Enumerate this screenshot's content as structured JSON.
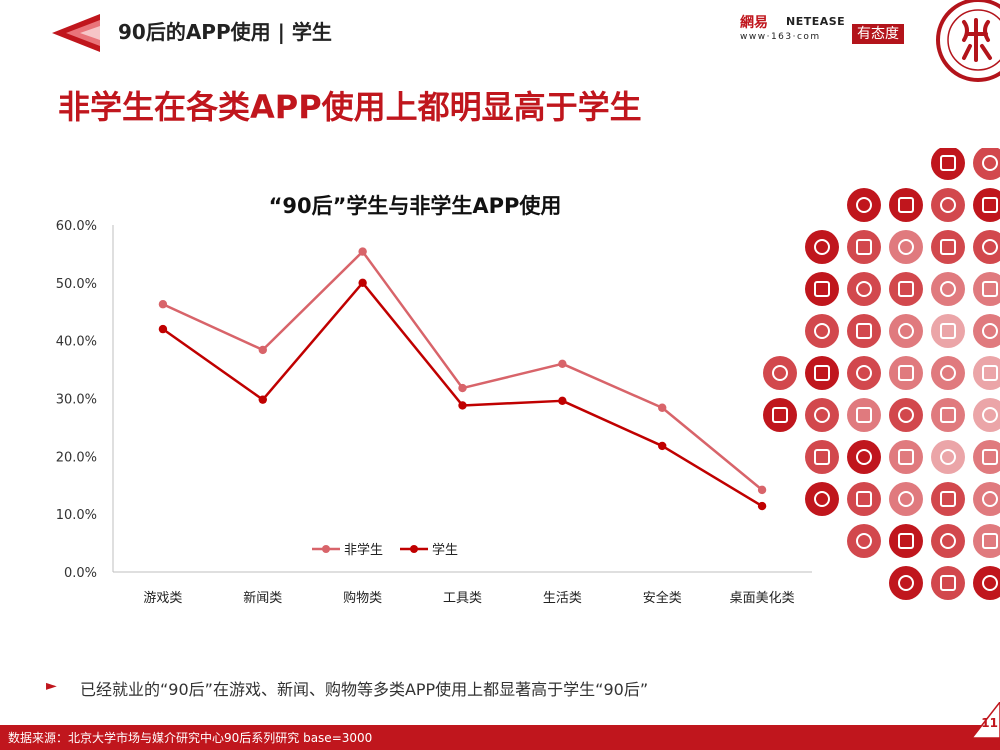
{
  "header": {
    "title": "90后的APP使用 | 学生",
    "brand_cn": "網易",
    "brand_en": "NETEASE",
    "brand_url": "www·163·com",
    "brand_tag": "有态度"
  },
  "headline": "非学生在各类APP使用上都明显高于学生",
  "chart_data": {
    "type": "line",
    "title": "“90后”学生与非学生APP使用",
    "categories": [
      "游戏类",
      "新闻类",
      "购物类",
      "工具类",
      "生活类",
      "安全类",
      "桌面美化类"
    ],
    "y_ticks": [
      "0.0%",
      "10.0%",
      "20.0%",
      "30.0%",
      "40.0%",
      "50.0%",
      "60.0%"
    ],
    "ylim": [
      0,
      60
    ],
    "legend_position": "bottom-center",
    "series": [
      {
        "name": "非学生",
        "color": "#d8646a",
        "values": [
          46.3,
          38.4,
          55.4,
          31.8,
          36.0,
          28.4,
          14.2
        ]
      },
      {
        "name": "学生",
        "color": "#c00000",
        "values": [
          42.0,
          29.8,
          50.0,
          28.8,
          29.6,
          21.8,
          11.4
        ]
      }
    ]
  },
  "bullet": "已经就业的“90后”在游戏、新闻、购物等多类APP使用上都显著高于学生“90后”",
  "footer": "数据来源：北京大学市场与媒介研究中心90后系列研究 base=3000",
  "page_number": "11",
  "colors": {
    "brand_red": "#c0161d",
    "line_light": "#d8646a",
    "line_dark": "#c00000"
  }
}
